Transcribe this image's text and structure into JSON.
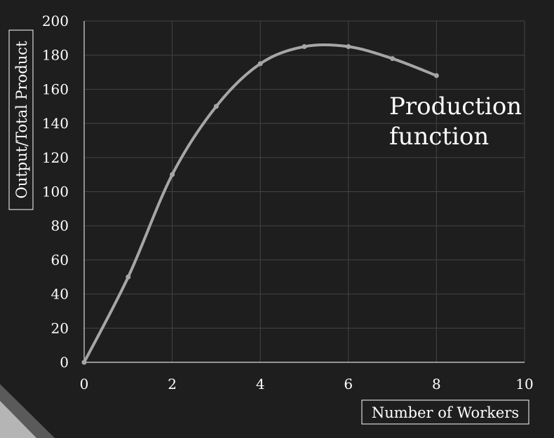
{
  "chart_data": {
    "type": "line",
    "title": "",
    "xlabel": "Number of Workers",
    "ylabel": "Output/Total Product",
    "xlim": [
      0,
      10
    ],
    "ylim": [
      0,
      200
    ],
    "xticks": [
      0,
      2,
      4,
      6,
      8,
      10
    ],
    "yticks": [
      0,
      20,
      40,
      60,
      80,
      100,
      120,
      140,
      160,
      180,
      200
    ],
    "grid": true,
    "smooth": true,
    "annotation": "Production function",
    "series": [
      {
        "x": [
          0,
          1,
          2,
          3,
          4,
          5,
          6,
          7,
          8
        ],
        "y": [
          0,
          50,
          110,
          150,
          175,
          185,
          185,
          178,
          168
        ],
        "color": "#a6a6a6"
      }
    ]
  },
  "colors": {
    "background": "#1e1e1e",
    "grid": "#444444",
    "axis": "#d9d9d9",
    "text": "#ffffff",
    "decor": "#b5b5b5"
  }
}
